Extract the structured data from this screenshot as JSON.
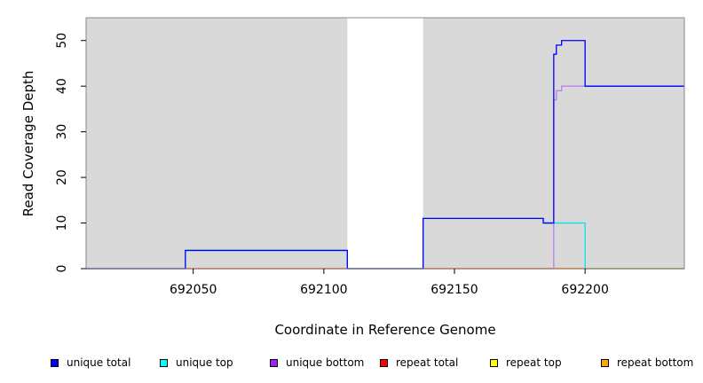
{
  "chart_data": {
    "type": "line",
    "xlabel": "Coordinate in Reference Genome",
    "ylabel": "Read Coverage Depth",
    "xlim": [
      692009,
      692238
    ],
    "ylim": [
      0,
      55
    ],
    "x_ticks": [
      692050,
      692100,
      692150,
      692200
    ],
    "y_ticks": [
      0,
      10,
      20,
      30,
      40,
      50
    ],
    "x_tick_labels": [
      "692050",
      "692100",
      "692150",
      "692200"
    ],
    "y_tick_labels": [
      "0",
      "10",
      "20",
      "30",
      "40",
      "50"
    ],
    "background": "#d9d9d9",
    "gap_regions": [
      [
        692109,
        692138
      ]
    ],
    "gap_color": "#ffffff",
    "series": [
      {
        "name": "unique total",
        "color": "#0000ff",
        "swatch": "#0000ff",
        "steps": [
          [
            692009,
            0
          ],
          [
            692047,
            4
          ],
          [
            692109,
            0
          ],
          [
            692138,
            11
          ],
          [
            692184,
            10
          ],
          [
            692188,
            47
          ],
          [
            692189,
            49
          ],
          [
            692191,
            50
          ],
          [
            692200,
            40
          ],
          [
            692238,
            40
          ]
        ]
      },
      {
        "name": "unique top",
        "color": "#00e5e5",
        "swatch": "#00ffff",
        "steps": [
          [
            692009,
            0
          ],
          [
            692047,
            4
          ],
          [
            692109,
            0
          ],
          [
            692138,
            11
          ],
          [
            692184,
            10
          ],
          [
            692200,
            0
          ],
          [
            692238,
            0
          ]
        ]
      },
      {
        "name": "unique bottom",
        "color": "#b87ff0",
        "swatch": "#a020f0",
        "steps": [
          [
            692009,
            0
          ],
          [
            692188,
            37
          ],
          [
            692189,
            39
          ],
          [
            692191,
            40
          ],
          [
            692238,
            40
          ]
        ]
      },
      {
        "name": "repeat total",
        "color": "#ff0000",
        "swatch": "#ff0000",
        "steps": [
          [
            692009,
            0
          ],
          [
            692238,
            0
          ]
        ]
      },
      {
        "name": "repeat top",
        "color": "#ffff00",
        "swatch": "#ffff00",
        "steps": [
          [
            692009,
            0
          ],
          [
            692238,
            0
          ]
        ]
      },
      {
        "name": "repeat bottom",
        "color": "#ffa500",
        "swatch": "#ffa500",
        "steps": [
          [
            692009,
            0
          ],
          [
            692238,
            0
          ]
        ]
      }
    ],
    "legend_position": "bottom"
  }
}
